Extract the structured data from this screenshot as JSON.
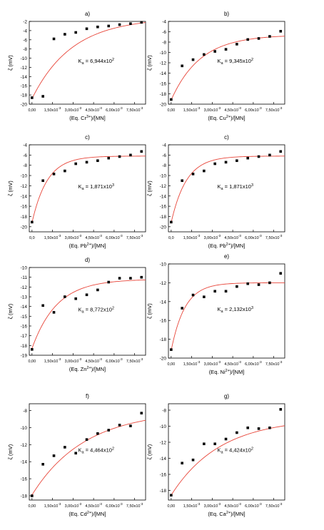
{
  "chart_data": [
    {
      "type": "scatter",
      "panel_label": "a)",
      "ka_base": "K",
      "ka_sub": "a",
      "ka_value": " = 6,944x10",
      "ka_exp": "2",
      "ylabel": "ζ  (mV)",
      "xlabel_text": "(Eq. Cr",
      "xlabel_sup": "3+",
      "xlabel_tail": ")/[MN]",
      "ylim": [
        -20,
        -2
      ],
      "y_ticks": [
        "-20",
        "-18",
        "-16",
        "-14",
        "-12",
        "-10",
        "-8",
        "-6",
        "-4",
        "-2"
      ],
      "x_ticks": [
        {
          "m": "0,00",
          "e": ""
        },
        {
          "m": "1,50x10",
          "e": "-3"
        },
        {
          "m": "3,00x10",
          "e": "-3"
        },
        {
          "m": "4,50x10",
          "e": "-3"
        },
        {
          "m": "6,00x10",
          "e": "-3"
        },
        {
          "m": "7,50x10",
          "e": "-3"
        }
      ],
      "xlim": [
        -0.0002,
        0.0083
      ],
      "x": [
        0.0,
        0.0008,
        0.0016,
        0.0024,
        0.0032,
        0.004,
        0.0048,
        0.0056,
        0.0064,
        0.0072,
        0.008
      ],
      "series": [
        {
          "values": [
            -18.6,
            -18.3,
            -5.8,
            -4.8,
            -4.4,
            -3.6,
            -3.2,
            -3.0,
            -2.7,
            -2.5,
            -2.2
          ]
        }
      ],
      "fit": {
        "y0": -18.8,
        "yinf": -1.2,
        "k": 340
      }
    },
    {
      "type": "scatter",
      "panel_label": "b)",
      "ka_base": "K",
      "ka_sub": "a",
      "ka_value": " = 9,345x10",
      "ka_exp": "2",
      "ylabel": "ζ  (mV)",
      "xlabel_text": "(Eq. Cu",
      "xlabel_sup": "2+",
      "xlabel_tail": ")/[MN]",
      "ylim": [
        -20,
        -4
      ],
      "y_ticks": [
        "-20",
        "-18",
        "-16",
        "-14",
        "-12",
        "-10",
        "-8",
        "-6",
        "-4"
      ],
      "x_ticks": [
        {
          "m": "0,00",
          "e": ""
        },
        {
          "m": "1,50x10",
          "e": "-3"
        },
        {
          "m": "3,00x10",
          "e": "-3"
        },
        {
          "m": "4,50x10",
          "e": "-3"
        },
        {
          "m": "6,00x10",
          "e": "-3"
        },
        {
          "m": "7,50x10",
          "e": "-3"
        }
      ],
      "xlim": [
        -0.0002,
        0.0083
      ],
      "x": [
        0.0,
        0.0008,
        0.0016,
        0.0024,
        0.0032,
        0.004,
        0.0048,
        0.0056,
        0.0064,
        0.0072,
        0.008
      ],
      "series": [
        {
          "values": [
            -19.1,
            -12.6,
            -11.4,
            -10.4,
            -9.8,
            -9.4,
            -8.4,
            -7.5,
            -7.3,
            -6.9,
            -5.9
          ]
        }
      ],
      "fit": {
        "y0": -19.2,
        "yinf": -6.6,
        "k": 470
      }
    },
    {
      "type": "scatter",
      "panel_label": "c)",
      "ka_base": "K",
      "ka_sub": "a",
      "ka_value": " = 1,871x10",
      "ka_exp": "3",
      "ylabel": "ζ  (mV)",
      "xlabel_text": "(Eq. Pb",
      "xlabel_sup": "2+",
      "xlabel_tail": ")/[MN]",
      "ylim": [
        -21,
        -4
      ],
      "y_ticks": [
        "-20",
        "-18",
        "-16",
        "-14",
        "-12",
        "-10",
        "-8",
        "-6",
        "-4"
      ],
      "x_ticks": [
        {
          "m": "0,0",
          "e": ""
        },
        {
          "m": "1,50x10",
          "e": "-3"
        },
        {
          "m": "3,00x10",
          "e": "-3"
        },
        {
          "m": "4,50x10",
          "e": "-3"
        },
        {
          "m": "6,00x10",
          "e": "-3"
        },
        {
          "m": "7,50x10",
          "e": "-3"
        }
      ],
      "xlim": [
        -0.0002,
        0.0083
      ],
      "x": [
        0.0,
        0.0008,
        0.0016,
        0.0024,
        0.0032,
        0.004,
        0.0048,
        0.0056,
        0.0064,
        0.0072,
        0.008
      ],
      "series": [
        {
          "values": [
            -19.1,
            -11.0,
            -9.7,
            -9.1,
            -7.7,
            -7.4,
            -7.1,
            -6.6,
            -6.3,
            -6.0,
            -5.3
          ]
        }
      ],
      "fit": {
        "y0": -19.2,
        "yinf": -6.2,
        "k": 900
      }
    },
    {
      "type": "scatter",
      "panel_label": "c)",
      "ka_base": "K",
      "ka_sub": "a",
      "ka_value": " = 1,871x10",
      "ka_exp": "3",
      "ylabel": "ζ  (mV)",
      "xlabel_text": "(Eq. Pb",
      "xlabel_sup": "2+",
      "xlabel_tail": ")/[MN]",
      "ylim": [
        -21,
        -4
      ],
      "y_ticks": [
        "-20",
        "-18",
        "-16",
        "-14",
        "-12",
        "-10",
        "-8",
        "-6",
        "-4"
      ],
      "x_ticks": [
        {
          "m": "0,0",
          "e": ""
        },
        {
          "m": "1,50x10",
          "e": "-3"
        },
        {
          "m": "3,00x10",
          "e": "-3"
        },
        {
          "m": "4,50x10",
          "e": "-3"
        },
        {
          "m": "6,00x10",
          "e": "-3"
        },
        {
          "m": "7,50x10",
          "e": "-3"
        }
      ],
      "xlim": [
        -0.0002,
        0.0083
      ],
      "x": [
        0.0,
        0.0008,
        0.0016,
        0.0024,
        0.0032,
        0.004,
        0.0048,
        0.0056,
        0.0064,
        0.0072,
        0.008
      ],
      "series": [
        {
          "values": [
            -19.1,
            -11.0,
            -9.7,
            -9.1,
            -7.7,
            -7.4,
            -7.1,
            -6.6,
            -6.3,
            -6.0,
            -5.3
          ]
        }
      ],
      "fit": {
        "y0": -19.2,
        "yinf": -6.2,
        "k": 900
      }
    },
    {
      "type": "scatter",
      "panel_label": "d)",
      "ka_base": "K",
      "ka_sub": "a",
      "ka_value": " = 8,772x10",
      "ka_exp": "2",
      "ylabel": "ζ  (mV)",
      "xlabel_text": "(Eq. Zn",
      "xlabel_sup": "2+",
      "xlabel_tail": ")/[MN]",
      "ylim": [
        -19,
        -10
      ],
      "y_ticks": [
        "-19",
        "-18",
        "-17",
        "-16",
        "-15",
        "-14",
        "-13",
        "-12",
        "-11",
        "-10"
      ],
      "x_ticks": [
        {
          "m": "0,00",
          "e": ""
        },
        {
          "m": "1,50x10",
          "e": "-3"
        },
        {
          "m": "3,00x10",
          "e": "-3"
        },
        {
          "m": "4,50x10",
          "e": "-3"
        },
        {
          "m": "6,00x10",
          "e": "-3"
        },
        {
          "m": "7,50x10",
          "e": "-3"
        }
      ],
      "xlim": [
        -0.0002,
        0.0083
      ],
      "x": [
        0.0,
        0.0008,
        0.0016,
        0.0024,
        0.0032,
        0.004,
        0.0048,
        0.0056,
        0.0064,
        0.0072,
        0.008
      ],
      "series": [
        {
          "values": [
            -18.4,
            -13.9,
            -14.6,
            -13.0,
            -13.2,
            -12.8,
            -12.3,
            -11.5,
            -11.1,
            -11.1,
            -11.0
          ]
        }
      ],
      "fit": {
        "y0": -18.3,
        "yinf": -11.2,
        "k": 550
      }
    },
    {
      "type": "scatter",
      "panel_label": "e)",
      "ka_base": "K",
      "ka_sub": "a",
      "ka_value": " = 2,132x10",
      "ka_exp": "3",
      "ylabel": "ζ  (mV)",
      "xlabel_text": "(Eq. Ni",
      "xlabel_sup": "2+",
      "xlabel_tail": ")/[NM]",
      "ylim": [
        -20,
        -10
      ],
      "y_ticks": [
        "-20",
        "-18",
        "-16",
        "-14",
        "-12",
        "-10"
      ],
      "x_ticks": [
        {
          "m": "0,00",
          "e": ""
        },
        {
          "m": "1,50x10",
          "e": "-3"
        },
        {
          "m": "3,00x10",
          "e": "-3"
        },
        {
          "m": "4,50x10",
          "e": "-3"
        },
        {
          "m": "6,00x10",
          "e": "-3"
        },
        {
          "m": "7,50x10",
          "e": "-3"
        }
      ],
      "xlim": [
        -0.0002,
        0.0083
      ],
      "x": [
        0.0,
        0.0008,
        0.0016,
        0.0024,
        0.0032,
        0.004,
        0.0048,
        0.0056,
        0.0064,
        0.0072,
        0.008
      ],
      "series": [
        {
          "values": [
            -19.1,
            -14.7,
            -13.3,
            -13.5,
            -12.9,
            -12.9,
            -12.4,
            -12.1,
            -12.2,
            -12.0,
            -11.0
          ]
        }
      ],
      "fit": {
        "y0": -19.2,
        "yinf": -12.0,
        "k": 1000
      }
    },
    {
      "type": "scatter",
      "panel_label": "f)",
      "ka_base": "K",
      "ka_sub": "a",
      "ka_value": " = 4,464x10",
      "ka_exp": "2",
      "ylabel": "ζ  (mV)",
      "xlabel_text": "(Eq. Cd",
      "xlabel_sup": "2+",
      "xlabel_tail": ")/[MN]",
      "ylim": [
        -18.5,
        -7.2
      ],
      "y_ticks": [
        "-18",
        "-16",
        "-14",
        "-12",
        "-10",
        "-8"
      ],
      "x_ticks": [
        {
          "m": "0,00",
          "e": ""
        },
        {
          "m": "1,50x10",
          "e": "-3"
        },
        {
          "m": "3,00x10",
          "e": "-3"
        },
        {
          "m": "4,50x10",
          "e": "-3"
        },
        {
          "m": "6,00x10",
          "e": "-3"
        },
        {
          "m": "7,50x10",
          "e": "-3"
        }
      ],
      "xlim": [
        -0.0002,
        0.0083
      ],
      "x": [
        0.0,
        0.0008,
        0.0016,
        0.0024,
        0.0032,
        0.004,
        0.0048,
        0.0056,
        0.0064,
        0.0072,
        0.008
      ],
      "series": [
        {
          "values": [
            -18.0,
            -14.3,
            -13.3,
            -12.3,
            -13.0,
            -11.4,
            -10.7,
            -10.3,
            -9.7,
            -9.8,
            -8.3
          ]
        }
      ],
      "fit": {
        "y0": -17.9,
        "yinf": -8.0,
        "k": 260
      }
    },
    {
      "type": "scatter",
      "panel_label": "g)",
      "ka_base": "K",
      "ka_sub": "a",
      "ka_value": " = 4,424x10",
      "ka_exp": "2",
      "ylabel": "ζ  (mV)",
      "xlabel_text": "(Eq. Ca",
      "xlabel_sup": "2+",
      "xlabel_tail": ")/[MN]",
      "ylim": [
        -19.2,
        -7.2
      ],
      "y_ticks": [
        "-18",
        "-16",
        "-14",
        "-12",
        "-10",
        "-8"
      ],
      "x_ticks": [
        {
          "m": "0,00",
          "e": ""
        },
        {
          "m": "1,50x10",
          "e": "-3"
        },
        {
          "m": "3,00x10",
          "e": "-3"
        },
        {
          "m": "4,50x10",
          "e": "-3"
        },
        {
          "m": "6,00x10",
          "e": "-3"
        },
        {
          "m": "7,50x10",
          "e": "-3"
        }
      ],
      "xlim": [
        -0.0002,
        0.0083
      ],
      "x": [
        0.0,
        0.0008,
        0.0016,
        0.0024,
        0.0032,
        0.004,
        0.0048,
        0.0056,
        0.0064,
        0.0072,
        0.008
      ],
      "series": [
        {
          "values": [
            -18.6,
            -14.6,
            -14.2,
            -12.2,
            -12.2,
            -11.6,
            -10.8,
            -10.2,
            -10.3,
            -10.2,
            -7.9
          ]
        }
      ],
      "fit": {
        "y0": -18.6,
        "yinf": -9.0,
        "k": 280
      }
    }
  ],
  "colors": {
    "points": "#000000",
    "fit": "#e8463a",
    "axis": "#000000",
    "background": "#ffffff"
  }
}
